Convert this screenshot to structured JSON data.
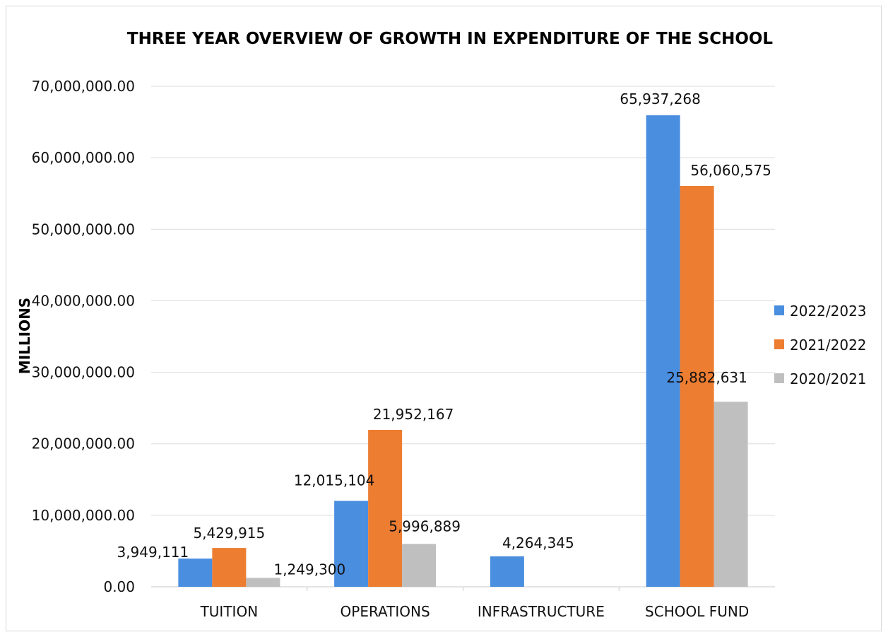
{
  "chart_data": {
    "type": "bar",
    "title": "THREE YEAR OVERVIEW OF GROWTH IN EXPENDITURE OF THE SCHOOL",
    "ylabel": "MILLIONS",
    "categories": [
      "TUITION",
      "OPERATIONS",
      "INFRASTRUCTURE",
      "SCHOOL FUND"
    ],
    "series": [
      {
        "name": "2022/2023",
        "color": "#4a8ee0",
        "values": [
          3949111,
          12015104,
          4264345,
          65937268
        ],
        "labels": [
          "3,949,111",
          "12,015,104",
          "4,264,345",
          "65,937,268"
        ]
      },
      {
        "name": "2021/2022",
        "color": "#ed7d31",
        "values": [
          5429915,
          21952167,
          0,
          56060575
        ],
        "labels": [
          "5,429,915",
          "21,952,167",
          "",
          "56,060,575"
        ]
      },
      {
        "name": "2020/2021",
        "color": "#bfbfbf",
        "values": [
          1249300,
          5996889,
          0,
          25882631
        ],
        "labels": [
          "1,249,300",
          "5,996,889",
          "",
          "25,882,631"
        ]
      }
    ],
    "ylim": [
      0,
      70000000
    ],
    "yticks": [
      0,
      10000000,
      20000000,
      30000000,
      40000000,
      50000000,
      60000000,
      70000000
    ],
    "ytick_labels": [
      "0.00",
      "10,000,000.00",
      "20,000,000.00",
      "30,000,000.00",
      "40,000,000.00",
      "50,000,000.00",
      "60,000,000.00",
      "70,000,000.00"
    ],
    "grid": true,
    "legend_position": "right"
  }
}
